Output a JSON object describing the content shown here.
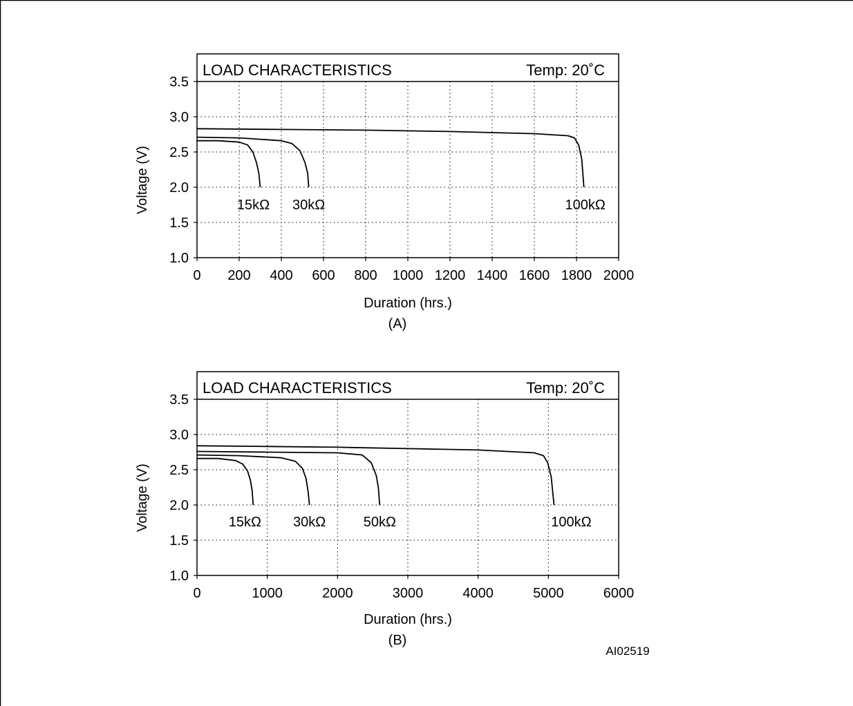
{
  "figure_id": "AI02519",
  "chart_data": [
    {
      "type": "line",
      "panel_label": "(A)",
      "title": "LOAD CHARACTERISTICS",
      "temperature": "Temp: 20˚C",
      "xlabel": "Duration (hrs.)",
      "ylabel": "Voltage (V)",
      "xlim": [
        0,
        2000
      ],
      "ylim": [
        1.0,
        3.5
      ],
      "xticks": [
        "0",
        "200",
        "400",
        "600",
        "800",
        "1000",
        "1200",
        "1400",
        "1600",
        "1800",
        "2000"
      ],
      "yticks": [
        "1.0",
        "1.5",
        "2.0",
        "2.5",
        "3.0",
        "3.5"
      ],
      "grid": true,
      "series": [
        {
          "name": "15kΩ",
          "x": [
            0,
            100,
            200,
            240,
            265,
            282,
            293,
            300
          ],
          "y": [
            2.66,
            2.66,
            2.64,
            2.6,
            2.5,
            2.35,
            2.2,
            2.0
          ]
        },
        {
          "name": "30kΩ",
          "x": [
            0,
            200,
            400,
            450,
            488,
            512,
            525,
            530
          ],
          "y": [
            2.71,
            2.7,
            2.66,
            2.62,
            2.52,
            2.35,
            2.2,
            2.0
          ]
        },
        {
          "name": "100kΩ",
          "x": [
            0,
            400,
            800,
            1200,
            1600,
            1760,
            1790,
            1810,
            1825,
            1835
          ],
          "y": [
            2.83,
            2.82,
            2.81,
            2.79,
            2.76,
            2.73,
            2.7,
            2.6,
            2.4,
            2.0
          ]
        }
      ]
    },
    {
      "type": "line",
      "panel_label": "(B)",
      "title": "LOAD CHARACTERISTICS",
      "temperature": "Temp: 20˚C",
      "xlabel": "Duration (hrs.)",
      "ylabel": "Voltage (V)",
      "xlim": [
        0,
        6000
      ],
      "ylim": [
        1.0,
        3.5
      ],
      "xticks": [
        "0",
        "1000",
        "2000",
        "3000",
        "4000",
        "5000",
        "6000"
      ],
      "yticks": [
        "1.0",
        "1.5",
        "2.0",
        "2.5",
        "3.0",
        "3.5"
      ],
      "grid": true,
      "series": [
        {
          "name": "15kΩ",
          "x": [
            0,
            300,
            550,
            650,
            720,
            760,
            785,
            800
          ],
          "y": [
            2.66,
            2.66,
            2.63,
            2.58,
            2.48,
            2.35,
            2.2,
            2.0
          ]
        },
        {
          "name": "30kΩ",
          "x": [
            0,
            600,
            1200,
            1400,
            1500,
            1550,
            1580,
            1600
          ],
          "y": [
            2.71,
            2.7,
            2.67,
            2.62,
            2.52,
            2.38,
            2.2,
            2.0
          ]
        },
        {
          "name": "50kΩ",
          "x": [
            0,
            1000,
            2000,
            2350,
            2480,
            2550,
            2580,
            2600
          ],
          "y": [
            2.76,
            2.75,
            2.74,
            2.71,
            2.6,
            2.42,
            2.25,
            2.0
          ]
        },
        {
          "name": "100kΩ",
          "x": [
            0,
            1000,
            2000,
            3000,
            4000,
            4800,
            4930,
            4990,
            5040,
            5080
          ],
          "y": [
            2.84,
            2.83,
            2.82,
            2.8,
            2.78,
            2.74,
            2.7,
            2.6,
            2.4,
            2.0
          ]
        }
      ]
    }
  ]
}
